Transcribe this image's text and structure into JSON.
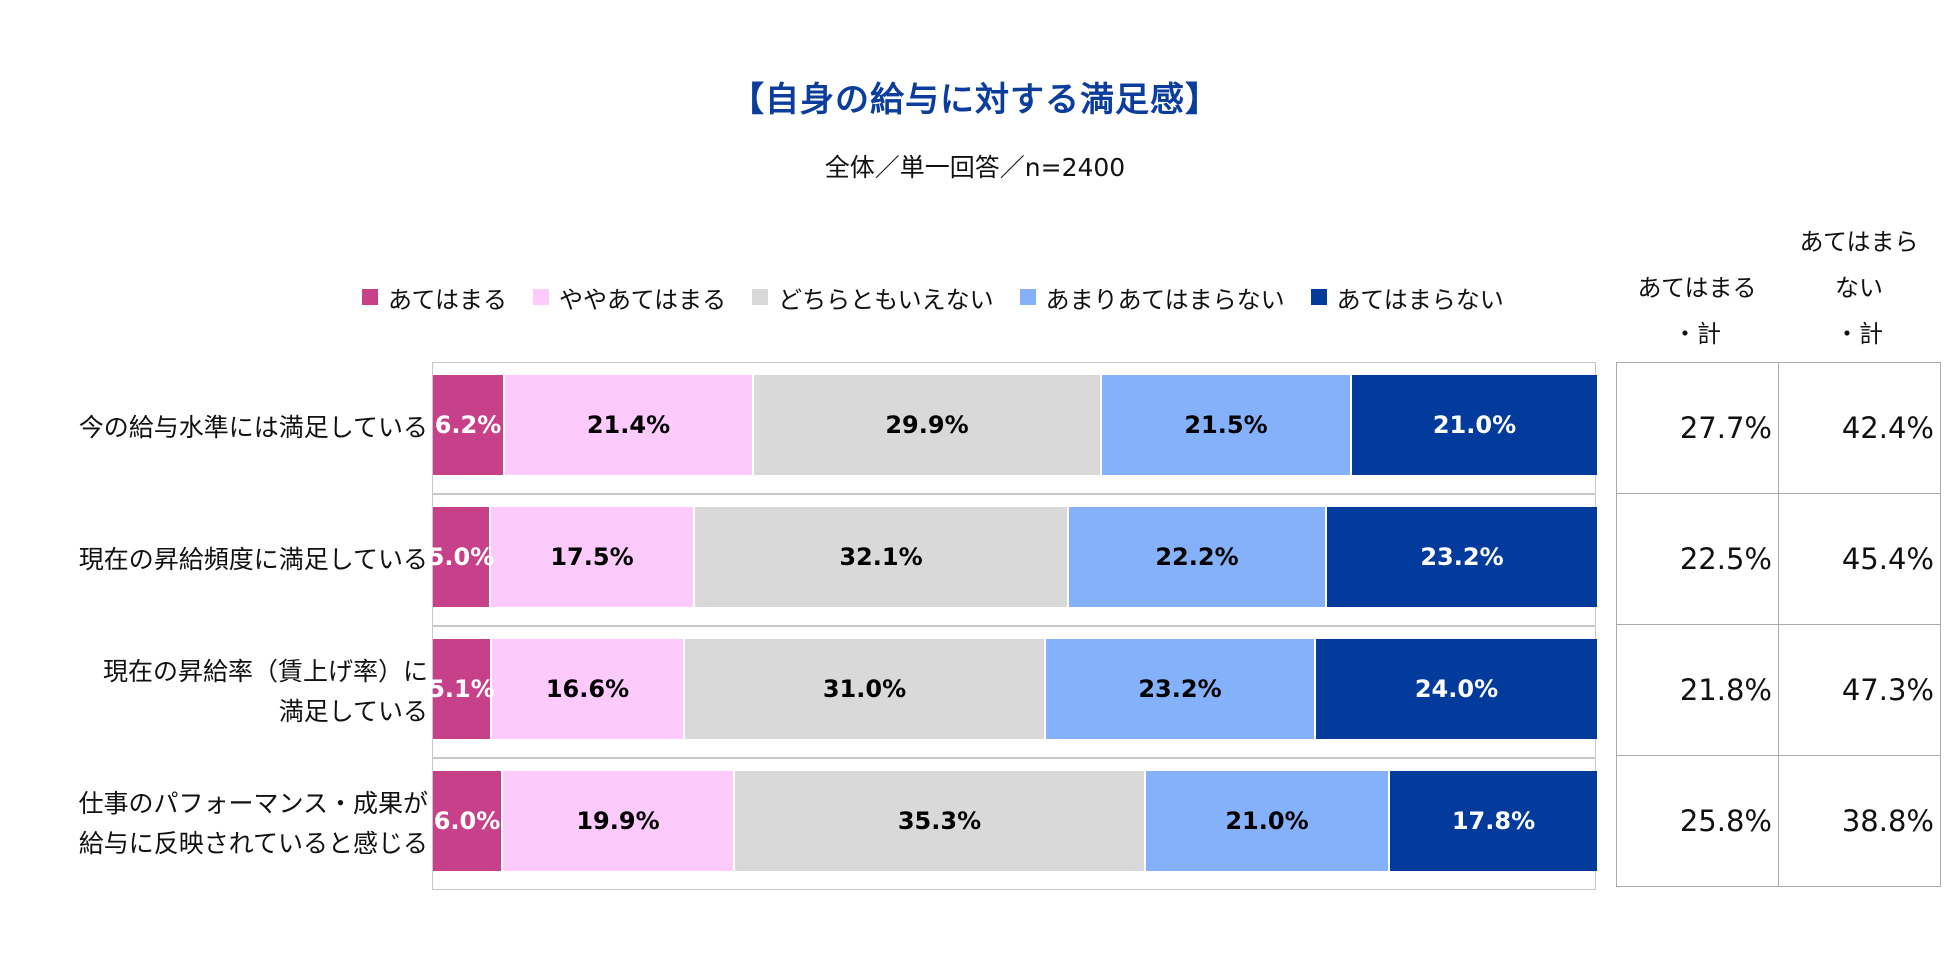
{
  "chart_data": {
    "type": "bar",
    "orientation": "horizontal-stacked-100",
    "title": "【自身の給与に対する満足感】",
    "subtitle": "全体／単一回答／n=2400",
    "legend_position": "top",
    "categories": [
      [
        "今の給与水準には満足している"
      ],
      [
        "現在の昇給頻度に満足している"
      ],
      [
        "現在の昇給率（賃上げ率）に",
        "満足している"
      ],
      [
        "仕事のパフォーマンス・成果が",
        "給与に反映されていると感じる"
      ]
    ],
    "series": [
      {
        "name": "あてはまる",
        "color": "#c7418a",
        "text_color": "#ffffff",
        "values": [
          6.2,
          5.0,
          5.1,
          6.0
        ],
        "labels": [
          "6.2%",
          "5.0%",
          "5.1%",
          "6.0%"
        ]
      },
      {
        "name": "ややあてはまる",
        "color": "#fccbfc",
        "text_color": "#000000",
        "values": [
          21.4,
          17.5,
          16.6,
          19.9
        ],
        "labels": [
          "21.4%",
          "17.5%",
          "16.6%",
          "19.9%"
        ]
      },
      {
        "name": "どちらともいえない",
        "color": "#d9d9d9",
        "text_color": "#000000",
        "values": [
          29.9,
          32.1,
          31.0,
          35.3
        ],
        "labels": [
          "29.9%",
          "32.1%",
          "31.0%",
          "35.3%"
        ]
      },
      {
        "name": "あまりあてはまらない",
        "color": "#85b1fa",
        "text_color": "#000000",
        "values": [
          21.5,
          22.2,
          23.2,
          21.0
        ],
        "labels": [
          "21.5%",
          "22.2%",
          "23.2%",
          "21.0%"
        ]
      },
      {
        "name": "あてはまらない",
        "color": "#023b9c",
        "text_color": "#ffffff",
        "values": [
          21.0,
          23.2,
          24.0,
          17.8
        ],
        "labels": [
          "21.0%",
          "23.2%",
          "24.0%",
          "17.8%"
        ]
      }
    ],
    "summary_columns": [
      {
        "header": [
          "あてはまる",
          "・計"
        ],
        "values": [
          "27.7%",
          "22.5%",
          "21.8%",
          "25.8%"
        ]
      },
      {
        "header": [
          "あてはまら",
          "ない",
          "・計"
        ],
        "values": [
          "42.4%",
          "45.4%",
          "47.3%",
          "38.8%"
        ]
      }
    ]
  }
}
